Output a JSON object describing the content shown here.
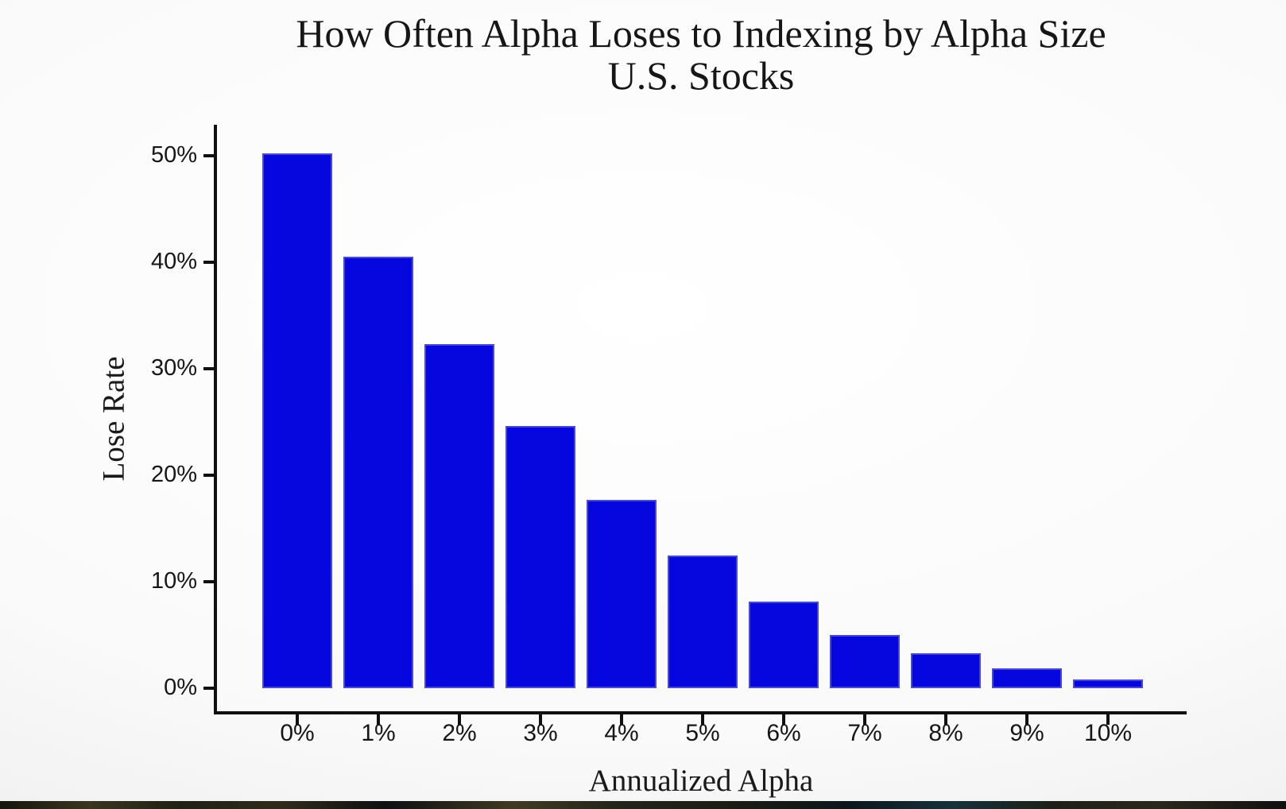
{
  "title": {
    "line1": "How Often Alpha Loses to Indexing by Alpha Size",
    "line2": "U.S. Stocks"
  },
  "chart_data": {
    "type": "bar",
    "title": "How Often Alpha Loses to Indexing by Alpha Size",
    "subtitle": "U.S. Stocks",
    "xlabel": "Annualized Alpha",
    "ylabel": "Lose Rate",
    "categories": [
      "0%",
      "1%",
      "2%",
      "3%",
      "4%",
      "5%",
      "6%",
      "7%",
      "8%",
      "9%",
      "10%"
    ],
    "values": [
      50.2,
      40.5,
      32.3,
      24.6,
      17.7,
      12.5,
      8.1,
      5.0,
      3.3,
      1.9,
      0.8
    ],
    "y_ticks": [
      "0%",
      "10%",
      "20%",
      "30%",
      "40%",
      "50%"
    ],
    "y_tick_values": [
      0,
      10,
      20,
      30,
      40,
      50
    ],
    "ylim": [
      0,
      52.5
    ],
    "grid": false,
    "legend": null,
    "bar_color": "#0606de",
    "bar_border_color": "#4a4ad0",
    "axis_color": "#101010"
  }
}
